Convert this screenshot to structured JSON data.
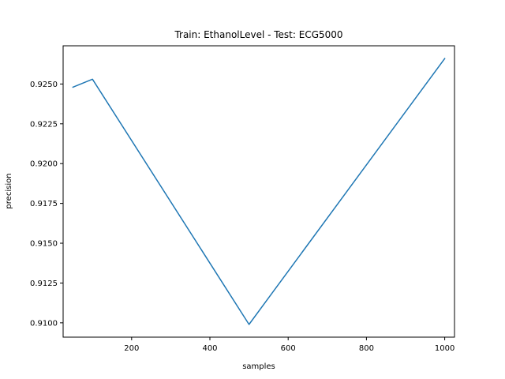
{
  "chart_data": {
    "type": "line",
    "title": "Train: EthanolLevel - Test: ECG5000",
    "xlabel": "samples",
    "ylabel": "precision",
    "xlim": [
      25,
      1025
    ],
    "ylim": [
      0.9091,
      0.9274
    ],
    "xticks": [
      200,
      400,
      600,
      800,
      1000
    ],
    "xtick_labels": [
      "200",
      "400",
      "600",
      "800",
      "1000"
    ],
    "yticks": [
      0.91,
      0.9125,
      0.915,
      0.9175,
      0.92,
      0.9225,
      0.925
    ],
    "ytick_labels": [
      "0.9100",
      "0.9125",
      "0.9150",
      "0.9175",
      "0.9200",
      "0.9225",
      "0.9250"
    ],
    "grid": false,
    "series": [
      {
        "color": "#1f77b4",
        "x": [
          50,
          100,
          500,
          1000
        ],
        "y": [
          0.9248,
          0.9253,
          0.9099,
          0.9266
        ]
      }
    ]
  }
}
